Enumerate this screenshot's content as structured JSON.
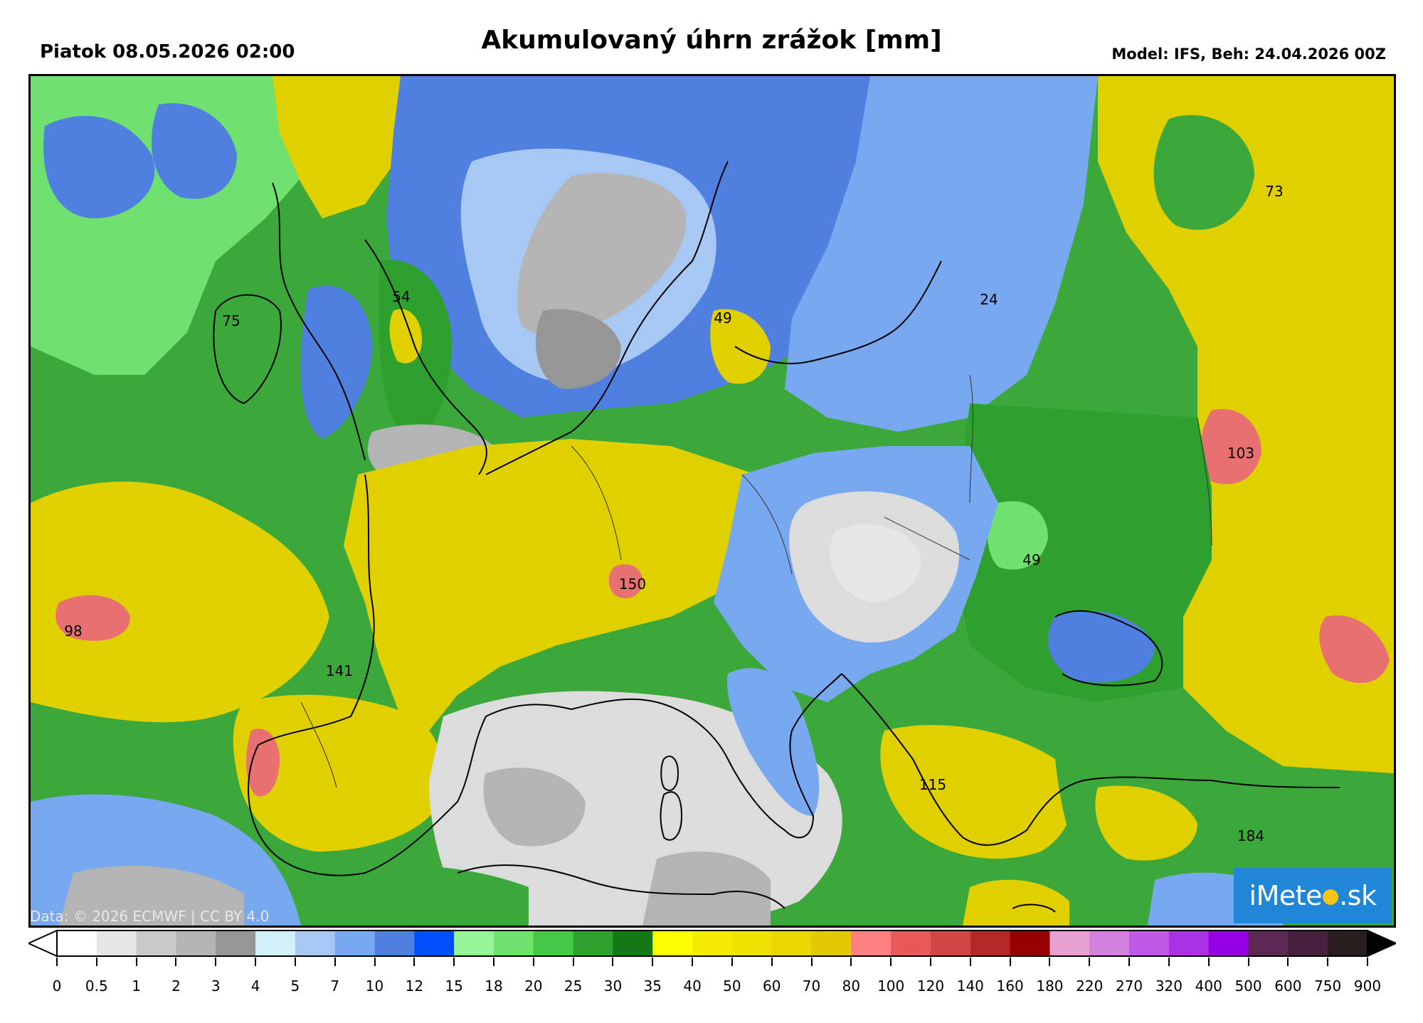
{
  "header": {
    "datetime": "Piatok 08.05.2026 02:00",
    "title": "Akumulovaný úhrn zrážok [mm]",
    "model": "Model: IFS, Beh: 24.04.2026 00Z"
  },
  "map": {
    "credit": "Data: © 2026 ECMWF | CC BY 4.0",
    "logo": {
      "part1": "iMete",
      "part2": ".sk",
      "icon": "sun-icon"
    },
    "value_labels": [
      {
        "id": "ireland",
        "text": "75"
      },
      {
        "id": "england",
        "text": "54"
      },
      {
        "id": "baltic",
        "text": "49"
      },
      {
        "id": "belarus",
        "text": "24"
      },
      {
        "id": "russia-north",
        "text": "73"
      },
      {
        "id": "russia-south",
        "text": "103"
      },
      {
        "id": "ukraine",
        "text": "49"
      },
      {
        "id": "atlantic",
        "text": "98"
      },
      {
        "id": "spain-north",
        "text": "141"
      },
      {
        "id": "alps",
        "text": "150"
      },
      {
        "id": "balkans",
        "text": "115"
      },
      {
        "id": "turkey",
        "text": "184"
      }
    ],
    "colors": {
      "gray_dry": "#b4b4b4",
      "light_gray": "#dcdcdc",
      "blue": "#4f80e0",
      "light_blue": "#a8c8f4",
      "green": "#3ca83c",
      "light_green": "#7fd77f",
      "dark_green": "#228b22",
      "yellow": "#e0d000",
      "pink": "#e87070",
      "coast": "#000000"
    }
  },
  "colorbar": {
    "colors": [
      "#ffffff",
      "#e6e6e6",
      "#c8c8c8",
      "#b4b4b4",
      "#969696",
      "#d2f0fa",
      "#a8c8f4",
      "#78a8f0",
      "#4f80e0",
      "#0050ff",
      "#96f596",
      "#6ee16e",
      "#46c846",
      "#2da02d",
      "#147814",
      "#ffff00",
      "#f5eb00",
      "#f0e100",
      "#ebd700",
      "#e1c800",
      "#ff8080",
      "#e85a5a",
      "#d24646",
      "#b42828",
      "#960000",
      "#e6a0d2",
      "#d282dc",
      "#be5ae6",
      "#aa32e6",
      "#9600e6",
      "#5a2850",
      "#46203c",
      "#281e1e"
    ],
    "ticks": [
      "0",
      "0.5",
      "1",
      "2",
      "3",
      "4",
      "5",
      "7",
      "10",
      "12",
      "15",
      "18",
      "20",
      "25",
      "30",
      "35",
      "40",
      "50",
      "60",
      "70",
      "80",
      "100",
      "120",
      "140",
      "160",
      "180",
      "220",
      "270",
      "320",
      "400",
      "500",
      "600",
      "750",
      "900"
    ]
  }
}
